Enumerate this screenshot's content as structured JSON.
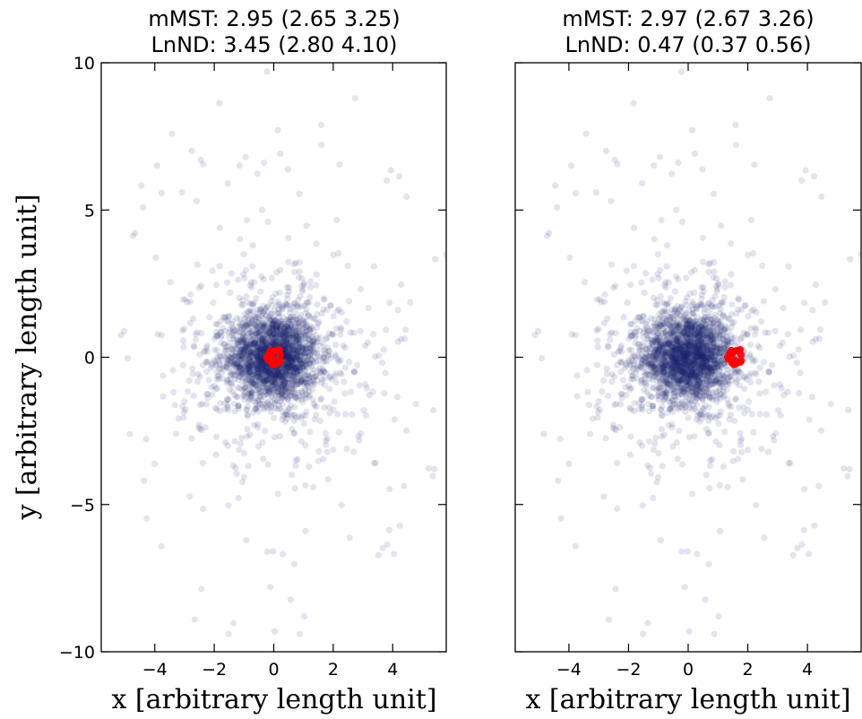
{
  "chart_data": [
    {
      "type": "scatter",
      "title_line1": "mMST: 2.95 (2.65 3.25)",
      "title_line2": "LnND: 3.45 (2.80 4.10)",
      "xlabel": "x [arbitrary length unit]",
      "ylabel": "y [arbitrary length unit]",
      "xlim": [
        -5.8,
        5.8
      ],
      "ylim": [
        -10,
        10
      ],
      "xticks": [
        -4,
        -2,
        0,
        2,
        4
      ],
      "yticks": [
        10,
        5,
        0,
        -5,
        -10
      ],
      "xtick_labels": [
        "−4",
        "−2",
        "0",
        "2",
        "4"
      ],
      "ytick_labels": [
        "10",
        "5",
        "0",
        "−5",
        "−10"
      ],
      "series": [
        {
          "role": "all-stars",
          "color": "#1a1f6e",
          "alpha": 0.12,
          "distribution": "centrally concentrated cloud, core radius ~1.2, sparse halo out to ~10",
          "center": [
            0,
            0
          ]
        },
        {
          "role": "subset-stars",
          "color": "#ff0000",
          "distribution": "compact clump, radius ~0.3",
          "center": [
            0.05,
            0.0
          ]
        }
      ]
    },
    {
      "type": "scatter",
      "title_line1": "mMST: 2.97 (2.67 3.26)",
      "title_line2": "LnND: 0.47 (0.37 0.56)",
      "xlabel": "x [arbitrary length unit]",
      "ylabel": "",
      "xlim": [
        -5.8,
        5.8
      ],
      "ylim": [
        -10,
        10
      ],
      "xticks": [
        -4,
        -2,
        0,
        2,
        4
      ],
      "yticks": [
        10,
        5,
        0,
        -5,
        -10
      ],
      "xtick_labels": [
        "−4",
        "−2",
        "0",
        "2",
        "4"
      ],
      "ytick_labels": [],
      "series": [
        {
          "role": "all-stars",
          "color": "#1a1f6e",
          "alpha": 0.12,
          "distribution": "centrally concentrated cloud, core radius ~1.2, sparse halo out to ~10",
          "center": [
            0,
            0
          ]
        },
        {
          "role": "subset-stars",
          "color": "#ff0000",
          "distribution": "compact clump, radius ~0.3",
          "center": [
            1.6,
            0.0
          ]
        }
      ]
    }
  ]
}
